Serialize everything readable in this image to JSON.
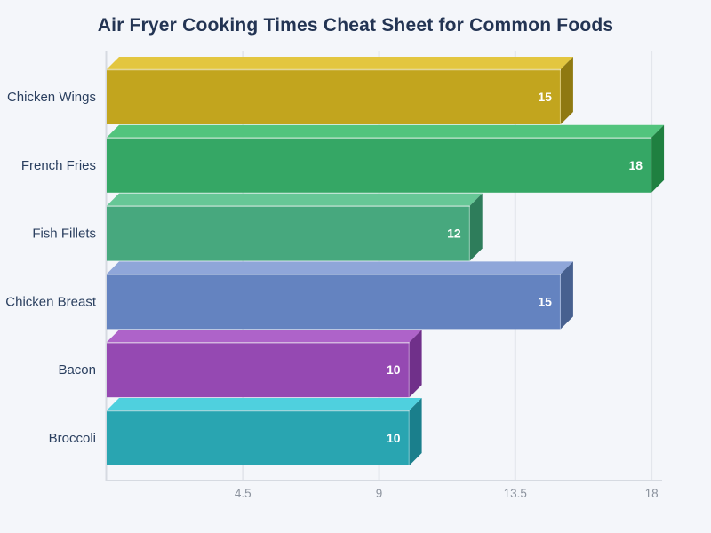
{
  "page": {
    "background": "#f4f6fa"
  },
  "chart_data": {
    "type": "bar",
    "orientation": "horizontal",
    "title": "Air Fryer Cooking Times Cheat Sheet for Common Foods",
    "title_color": "#233453",
    "categories": [
      "Chicken Wings",
      "French Fries",
      "Fish Fillets",
      "Chicken Breast",
      "Bacon",
      "Broccoli"
    ],
    "values": [
      15,
      18,
      12,
      15,
      10,
      10
    ],
    "value_labels": [
      "15",
      "18",
      "12",
      "15",
      "10",
      "10"
    ],
    "value_label_color": "#ffffff",
    "bar_colors": [
      {
        "front": "#c2a51e",
        "top": "#e3c63f",
        "side": "#8f7911"
      },
      {
        "front": "#35a765",
        "top": "#52c47d",
        "side": "#1f8040"
      },
      {
        "front": "#47a87e",
        "top": "#66c796",
        "side": "#2e7d5b"
      },
      {
        "front": "#6483c0",
        "top": "#8fa6d9",
        "side": "#47608f"
      },
      {
        "front": "#9549b2",
        "top": "#ae63c9",
        "side": "#70308a"
      },
      {
        "front": "#29a5b1",
        "top": "#4fd0de",
        "side": "#1a7f8c"
      }
    ],
    "xlim": [
      0,
      18
    ],
    "xticks": [
      4.5,
      9,
      13.5,
      18
    ],
    "xtick_labels": [
      "4.5",
      "9",
      "13.5",
      "18"
    ],
    "xtick_label_color": "#8c939e",
    "category_label_color": "#2a3f5f",
    "grid": true,
    "grid_color": "#e3e6ec",
    "axis_color": "#d6dae1",
    "xlabel": "",
    "ylabel": "",
    "legend": "none",
    "style_3d": true
  }
}
